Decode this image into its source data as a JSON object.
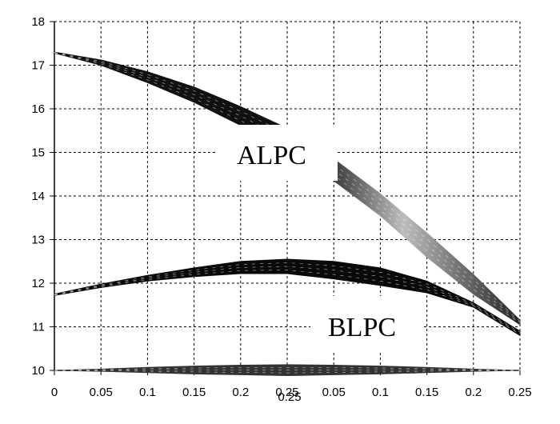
{
  "chart_data": {
    "type": "area",
    "title": "",
    "xlabel": "",
    "ylabel": "",
    "x_ticks": [
      "0",
      "0.05",
      "0.1",
      "0.15",
      "0.2",
      "0.25",
      "0.05",
      "0.1",
      "0.15",
      "0.2",
      "0.25"
    ],
    "x_overlap_tick": "0.25",
    "x_position": [
      0,
      0.05,
      0.1,
      0.15,
      0.2,
      0.25,
      0.3,
      0.35,
      0.4,
      0.45,
      0.5
    ],
    "xlim": [
      0,
      0.5
    ],
    "ylim": [
      10,
      18
    ],
    "y_ticks": [
      "10",
      "11",
      "12",
      "13",
      "14",
      "15",
      "16",
      "17",
      "18"
    ],
    "grid": true,
    "annotations": [
      "ALPC",
      "BLPC"
    ],
    "series": [
      {
        "name": "ALPC",
        "color": "#111111",
        "fade_to": "#bdbdbd",
        "x": [
          0,
          0.05,
          0.1,
          0.15,
          0.2,
          0.25,
          0.3,
          0.35,
          0.4,
          0.45,
          0.5
        ],
        "upper": [
          17.3,
          17.12,
          16.85,
          16.5,
          16.05,
          15.55,
          14.85,
          14.05,
          13.15,
          12.2,
          11.15
        ],
        "lower": [
          17.28,
          17.0,
          16.6,
          16.15,
          15.62,
          15.05,
          14.35,
          13.55,
          12.6,
          11.75,
          11.05
        ]
      },
      {
        "name": "BLPC",
        "color": "#0a0a0a",
        "x": [
          0,
          0.05,
          0.1,
          0.15,
          0.2,
          0.25,
          0.3,
          0.35,
          0.4,
          0.45,
          0.5
        ],
        "upper": [
          11.75,
          11.98,
          12.18,
          12.35,
          12.5,
          12.55,
          12.5,
          12.35,
          12.05,
          11.55,
          10.9
        ],
        "lower": [
          11.72,
          11.9,
          12.05,
          12.15,
          12.22,
          12.22,
          12.1,
          11.95,
          11.78,
          11.45,
          10.8
        ]
      },
      {
        "name": "",
        "color": "#333333",
        "x": [
          0,
          0.05,
          0.1,
          0.15,
          0.2,
          0.25,
          0.3,
          0.35,
          0.4,
          0.45,
          0.5
        ],
        "upper": [
          10.0,
          10.03,
          10.07,
          10.1,
          10.12,
          10.13,
          10.12,
          10.1,
          10.07,
          10.03,
          10.0
        ],
        "lower": [
          10.0,
          9.98,
          9.95,
          9.92,
          9.9,
          9.88,
          9.9,
          9.92,
          9.95,
          9.98,
          10.0
        ]
      }
    ],
    "colors": {
      "grid": "#000000",
      "axis": "#000000",
      "background": "#ffffff"
    }
  }
}
